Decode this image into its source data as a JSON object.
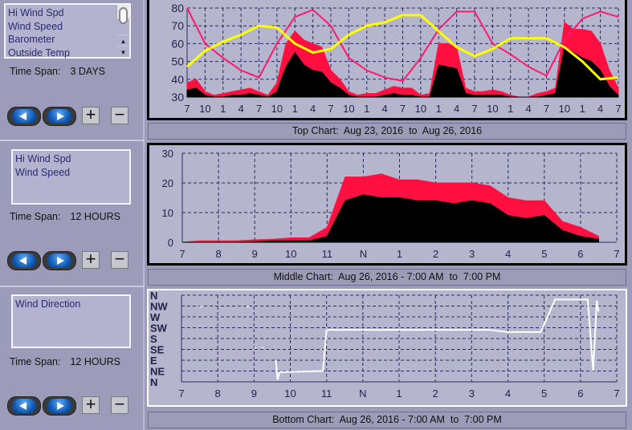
{
  "panels": [
    {
      "list_items": [
        "Hi Wind Spd",
        "Wind Speed",
        "Barometer",
        "Outside Temp"
      ],
      "time_span_label": "Time Span:",
      "time_span_value": "3 DAYS",
      "caption": "Top Chart:  Aug 23, 2016  to  Aug 26, 2016"
    },
    {
      "list_items": [
        "Hi Wind Spd",
        "Wind Speed"
      ],
      "time_span_label": "Time Span:",
      "time_span_value": "12 HOURS",
      "caption": "Middle Chart:  Aug 26, 2016 - 7:00 AM  to  7:00 PM"
    },
    {
      "list_items": [
        "Wind Direction"
      ],
      "time_span_label": "Time Span:",
      "time_span_value": "12 HOURS",
      "caption": "Bottom Chart:  Aug 26, 2016 - 7:00 AM  to  7:00 PM"
    }
  ],
  "buttons": {
    "plus": "+",
    "minus": "−",
    "prev_icon": "left-arrow-icon",
    "next_icon": "right-arrow-icon"
  },
  "colors": {
    "hi_wind": "#ff1040",
    "wind": "#000000",
    "temp": "#ff1a6e",
    "barometer": "#ffff00",
    "direction": "#ffffff",
    "grid": "#2a2a60"
  },
  "chart_data": [
    {
      "type": "line",
      "ylim": [
        30,
        80
      ],
      "yticks": [
        "30",
        "40",
        "50",
        "60",
        "70",
        "80"
      ],
      "xticks": [
        "7",
        "10",
        "1",
        "4",
        "7",
        "10",
        "1",
        "4",
        "7",
        "10",
        "1",
        "4",
        "7",
        "10",
        "1",
        "4",
        "7",
        "10",
        "1",
        "4",
        "7",
        "10",
        "1",
        "4",
        "7"
      ],
      "grid": true,
      "series": [
        {
          "key": "hi_wind",
          "style": "area",
          "values": [
            38,
            40,
            33,
            31,
            32,
            33,
            34,
            35,
            33,
            31,
            38,
            60,
            67,
            62,
            60,
            58,
            45,
            40,
            33,
            31,
            32,
            32,
            34,
            36,
            35,
            35,
            31,
            32,
            60,
            60,
            58,
            35,
            33,
            33,
            34,
            33,
            31,
            30,
            30,
            32,
            33,
            35,
            72,
            68,
            68,
            67,
            60,
            45,
            35
          ]
        },
        {
          "key": "wind",
          "style": "area",
          "values": [
            34,
            35,
            31,
            30,
            30,
            31,
            31,
            32,
            31,
            30,
            33,
            47,
            55,
            48,
            45,
            44,
            38,
            35,
            31,
            30,
            30,
            30,
            31,
            32,
            31,
            31,
            30,
            30,
            48,
            47,
            46,
            32,
            31,
            31,
            31,
            31,
            30,
            30,
            30,
            30,
            31,
            32,
            58,
            55,
            52,
            50,
            45,
            36,
            31
          ]
        },
        {
          "key": "temp",
          "style": "line",
          "values": [
            80,
            60,
            52,
            45,
            41,
            60,
            75,
            79,
            70,
            52,
            45,
            41,
            39,
            52,
            68,
            78,
            78,
            60,
            54,
            47,
            42,
            62,
            74,
            78,
            75
          ]
        },
        {
          "key": "barometer",
          "style": "line",
          "values": [
            47,
            56,
            61,
            65,
            70,
            69,
            60,
            55,
            57,
            65,
            70,
            72,
            76,
            76,
            67,
            58,
            53,
            57,
            63,
            63,
            63,
            58,
            50,
            40,
            41
          ]
        }
      ]
    },
    {
      "type": "line",
      "ylim": [
        0,
        30
      ],
      "yticks": [
        "0",
        "10",
        "20",
        "30"
      ],
      "xticks": [
        "7",
        "8",
        "9",
        "10",
        "11",
        "N",
        "1",
        "2",
        "3",
        "4",
        "5",
        "6",
        "7"
      ],
      "grid": true,
      "x": [
        7,
        7.5,
        8,
        8.5,
        9,
        9.5,
        10,
        10.5,
        11,
        11.5,
        12,
        12.5,
        13,
        13.5,
        14,
        14.5,
        15,
        15.5,
        16,
        16.5,
        17,
        17.5,
        18,
        18.5
      ],
      "series": [
        {
          "key": "hi_wind",
          "style": "area",
          "values": [
            0,
            0.5,
            0.5,
            0.5,
            0.8,
            1,
            1.5,
            1.5,
            5,
            22,
            22,
            23,
            21,
            21,
            20,
            20,
            20,
            19,
            15,
            14,
            14,
            7,
            5,
            2
          ]
        },
        {
          "key": "wind",
          "style": "area",
          "values": [
            0,
            0,
            0,
            0,
            0.2,
            0.5,
            0.5,
            0.5,
            2,
            14,
            16,
            15,
            15,
            14,
            14,
            13,
            14,
            13,
            9,
            8,
            9,
            4,
            2,
            1
          ]
        }
      ]
    },
    {
      "type": "line",
      "ylim": [
        0,
        8
      ],
      "yticks": [
        "N",
        "NE",
        "E",
        "SE",
        "S",
        "SW",
        "W",
        "NW",
        "N"
      ],
      "xticks": [
        "7",
        "8",
        "9",
        "10",
        "11",
        "N",
        "1",
        "2",
        "3",
        "4",
        "5",
        "6",
        "7"
      ],
      "grid": true,
      "series": [
        {
          "key": "direction",
          "style": "line",
          "points": [
            [
              9.6,
              2
            ],
            [
              9.65,
              0.2
            ],
            [
              9.7,
              0.9
            ],
            [
              10.9,
              1
            ],
            [
              11.0,
              4.8
            ],
            [
              15.5,
              4.8
            ],
            [
              16.0,
              4.6
            ],
            [
              16.9,
              4.6
            ],
            [
              17.0,
              5.3
            ],
            [
              17.3,
              7.6
            ],
            [
              18.2,
              7.6
            ],
            [
              18.35,
              1
            ],
            [
              18.45,
              7.5
            ],
            [
              18.5,
              6.5
            ]
          ]
        },
        {
          "key": "direction",
          "style": "dots",
          "points": [
            [
              7.5,
              7
            ],
            [
              8.8,
              7
            ],
            [
              9.0,
              3.2
            ],
            [
              9.2,
              3.2
            ]
          ]
        }
      ]
    }
  ]
}
